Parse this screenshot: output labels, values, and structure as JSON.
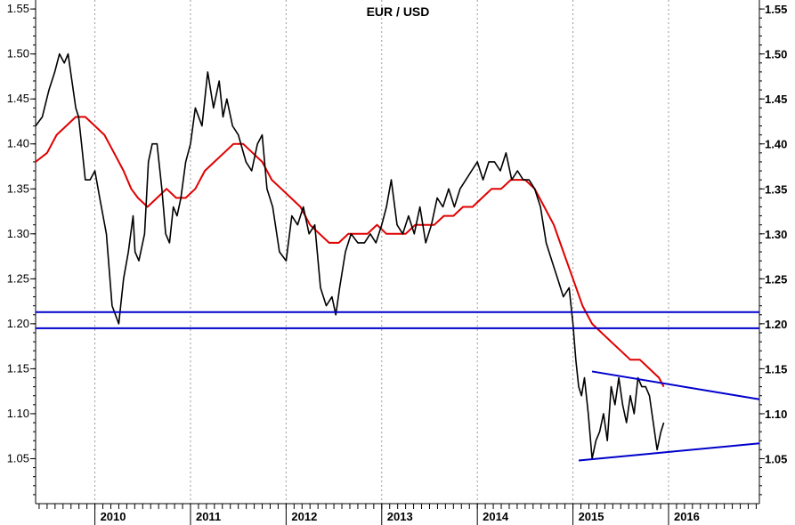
{
  "chart_data": {
    "type": "line",
    "title": "EUR / USD",
    "xlabel": "",
    "ylabel": "",
    "xlim": [
      2009.38,
      2016.95
    ],
    "ylim": [
      1.0,
      1.56
    ],
    "x_ticks": [
      "2010",
      "2011",
      "2012",
      "2013",
      "2014",
      "2015",
      "2016"
    ],
    "y_ticks": [
      "1.05",
      "1.10",
      "1.15",
      "1.20",
      "1.25",
      "1.30",
      "1.35",
      "1.40",
      "1.45",
      "1.50",
      "1.55"
    ],
    "grid": {
      "vertical": "dotted",
      "horizontal": false
    },
    "colors": {
      "price": "#000000",
      "moving_average": "#e00000",
      "lines": "#0000cc"
    },
    "series": [
      {
        "key": "price",
        "x": [
          2009.38,
          2009.45,
          2009.52,
          2009.58,
          2009.63,
          2009.68,
          2009.72,
          2009.76,
          2009.8,
          2009.83,
          2009.86,
          2009.9,
          2009.95,
          2010.0,
          2010.05,
          2010.12,
          2010.18,
          2010.25,
          2010.3,
          2010.35,
          2010.4,
          2010.42,
          2010.46,
          2010.52,
          2010.56,
          2010.6,
          2010.65,
          2010.7,
          2010.74,
          2010.78,
          2010.82,
          2010.86,
          2010.9,
          2010.95,
          2011.0,
          2011.05,
          2011.12,
          2011.18,
          2011.24,
          2011.3,
          2011.34,
          2011.38,
          2011.44,
          2011.5,
          2011.58,
          2011.64,
          2011.7,
          2011.75,
          2011.8,
          2011.86,
          2011.93,
          2012.0,
          2012.06,
          2012.12,
          2012.18,
          2012.24,
          2012.3,
          2012.36,
          2012.42,
          2012.48,
          2012.52,
          2012.56,
          2012.62,
          2012.68,
          2012.75,
          2012.82,
          2012.88,
          2012.94,
          2013.0,
          2013.05,
          2013.1,
          2013.16,
          2013.22,
          2013.28,
          2013.34,
          2013.4,
          2013.46,
          2013.52,
          2013.58,
          2013.64,
          2013.7,
          2013.76,
          2013.82,
          2013.88,
          2013.94,
          2014.0,
          2014.06,
          2014.12,
          2014.18,
          2014.24,
          2014.3,
          2014.36,
          2014.42,
          2014.48,
          2014.54,
          2014.6,
          2014.66,
          2014.72,
          2014.78,
          2014.84,
          2014.9,
          2014.96,
          2015.0,
          2015.03,
          2015.06,
          2015.09,
          2015.12,
          2015.16,
          2015.2,
          2015.24,
          2015.28,
          2015.32,
          2015.36,
          2015.4,
          2015.44,
          2015.48,
          2015.52,
          2015.56,
          2015.6,
          2015.64,
          2015.68,
          2015.72,
          2015.76,
          2015.8,
          2015.84,
          2015.88,
          2015.92,
          2015.95
        ],
        "y": [
          1.42,
          1.43,
          1.46,
          1.48,
          1.5,
          1.49,
          1.5,
          1.47,
          1.44,
          1.43,
          1.4,
          1.36,
          1.36,
          1.37,
          1.34,
          1.3,
          1.22,
          1.2,
          1.25,
          1.28,
          1.32,
          1.28,
          1.27,
          1.3,
          1.38,
          1.4,
          1.4,
          1.35,
          1.3,
          1.29,
          1.33,
          1.32,
          1.34,
          1.38,
          1.4,
          1.44,
          1.42,
          1.48,
          1.44,
          1.47,
          1.43,
          1.45,
          1.42,
          1.41,
          1.38,
          1.37,
          1.4,
          1.41,
          1.35,
          1.33,
          1.28,
          1.27,
          1.32,
          1.31,
          1.33,
          1.3,
          1.31,
          1.24,
          1.22,
          1.23,
          1.21,
          1.24,
          1.28,
          1.3,
          1.29,
          1.29,
          1.3,
          1.29,
          1.31,
          1.33,
          1.36,
          1.31,
          1.3,
          1.32,
          1.3,
          1.33,
          1.29,
          1.31,
          1.34,
          1.33,
          1.35,
          1.33,
          1.35,
          1.36,
          1.37,
          1.38,
          1.36,
          1.38,
          1.38,
          1.37,
          1.39,
          1.36,
          1.37,
          1.36,
          1.36,
          1.35,
          1.33,
          1.29,
          1.27,
          1.25,
          1.23,
          1.24,
          1.2,
          1.16,
          1.13,
          1.12,
          1.14,
          1.1,
          1.05,
          1.07,
          1.08,
          1.1,
          1.07,
          1.13,
          1.11,
          1.14,
          1.11,
          1.09,
          1.12,
          1.1,
          1.14,
          1.13,
          1.13,
          1.12,
          1.09,
          1.06,
          1.08,
          1.09
        ]
      },
      {
        "key": "moving_average",
        "x": [
          2009.38,
          2009.5,
          2009.6,
          2009.7,
          2009.8,
          2009.9,
          2010.0,
          2010.1,
          2010.2,
          2010.3,
          2010.38,
          2010.45,
          2010.55,
          2010.65,
          2010.75,
          2010.85,
          2010.95,
          2011.05,
          2011.15,
          2011.25,
          2011.35,
          2011.45,
          2011.55,
          2011.65,
          2011.75,
          2011.85,
          2011.95,
          2012.05,
          2012.15,
          2012.25,
          2012.35,
          2012.45,
          2012.55,
          2012.65,
          2012.75,
          2012.85,
          2012.95,
          2013.05,
          2013.15,
          2013.25,
          2013.35,
          2013.45,
          2013.55,
          2013.65,
          2013.75,
          2013.85,
          2013.95,
          2014.05,
          2014.15,
          2014.25,
          2014.35,
          2014.45,
          2014.5,
          2014.6,
          2014.7,
          2014.8,
          2014.9,
          2015.0,
          2015.1,
          2015.2,
          2015.3,
          2015.4,
          2015.5,
          2015.6,
          2015.7,
          2015.8,
          2015.9,
          2015.95
        ],
        "y": [
          1.38,
          1.39,
          1.41,
          1.42,
          1.43,
          1.43,
          1.42,
          1.41,
          1.39,
          1.37,
          1.35,
          1.34,
          1.33,
          1.34,
          1.35,
          1.34,
          1.34,
          1.35,
          1.37,
          1.38,
          1.39,
          1.4,
          1.4,
          1.39,
          1.38,
          1.36,
          1.35,
          1.34,
          1.33,
          1.31,
          1.3,
          1.29,
          1.29,
          1.3,
          1.3,
          1.3,
          1.31,
          1.3,
          1.3,
          1.3,
          1.31,
          1.31,
          1.31,
          1.32,
          1.32,
          1.33,
          1.33,
          1.34,
          1.35,
          1.35,
          1.36,
          1.36,
          1.36,
          1.35,
          1.33,
          1.31,
          1.28,
          1.25,
          1.22,
          1.2,
          1.19,
          1.18,
          1.17,
          1.16,
          1.16,
          1.15,
          1.14,
          1.13
        ]
      }
    ],
    "horizontal_lines": [
      1.213,
      1.195
    ],
    "trend_lines": [
      {
        "x": [
          2015.2,
          2016.95
        ],
        "y": [
          1.147,
          1.116
        ]
      },
      {
        "x": [
          2015.06,
          2016.95
        ],
        "y": [
          1.048,
          1.067
        ]
      }
    ]
  }
}
